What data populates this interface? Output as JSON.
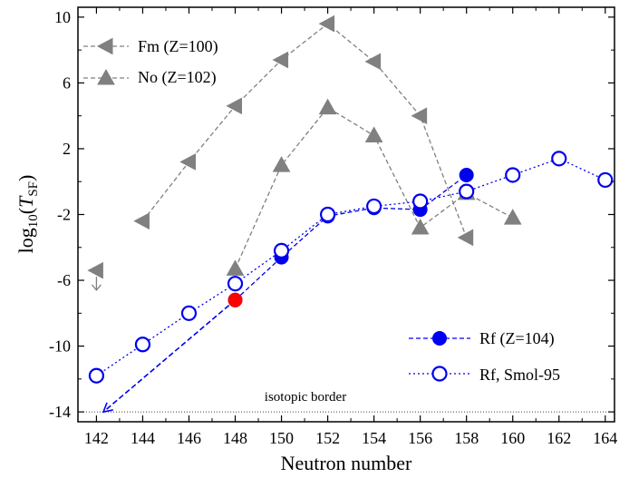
{
  "chart_data": {
    "type": "scatter",
    "xlabel": "Neutron number",
    "ylabel": {
      "base": "log",
      "sub1": "10",
      "open": "(",
      "italic": "T",
      "sub2": "SF",
      "close": ")"
    },
    "xlim": [
      141.2,
      164.4
    ],
    "ylim": [
      -14.6,
      10.6
    ],
    "xticks": [
      142,
      144,
      146,
      148,
      150,
      152,
      154,
      156,
      158,
      160,
      162,
      164
    ],
    "yticks": [
      10,
      6,
      2,
      -2,
      -6,
      -10,
      -14
    ],
    "ytick_labels": [
      "10",
      "6",
      "2",
      "-2",
      "-6",
      "-10",
      "-14"
    ],
    "grid": false,
    "legend_placement": [
      "top-left",
      "bottom-right"
    ],
    "series": [
      {
        "name": "Fm (Z=100)",
        "marker": "triangle-left",
        "color": "#808080",
        "filled": true,
        "line": "dashed",
        "x": [
          144,
          146,
          148,
          150,
          152,
          154,
          156,
          158
        ],
        "y": [
          -2.4,
          1.2,
          4.6,
          7.4,
          9.6,
          7.3,
          4.0,
          -3.4
        ]
      },
      {
        "name": "No (Z=102)",
        "marker": "triangle-up",
        "color": "#808080",
        "filled": true,
        "line": "dashed",
        "x": [
          148,
          150,
          152,
          154,
          156,
          158,
          160
        ],
        "y": [
          -5.3,
          1.0,
          4.5,
          2.8,
          -2.8,
          -0.7,
          -2.2
        ]
      },
      {
        "name": "Rf (Z=104)",
        "marker": "circle",
        "color": "#0000ee",
        "filled": true,
        "line": "dashed",
        "x": [
          148,
          150,
          152,
          154,
          156,
          158
        ],
        "y": [
          -7.2,
          -4.6,
          -2.1,
          -1.6,
          -1.7,
          0.4
        ]
      },
      {
        "name": "Rf, Smol-95",
        "marker": "circle",
        "color": "#0000ee",
        "filled": false,
        "line": "dotted",
        "x": [
          142,
          144,
          146,
          148,
          150,
          152,
          154,
          156,
          158,
          160,
          162,
          164
        ],
        "y": [
          -11.8,
          -9.9,
          -8.0,
          -6.2,
          -4.2,
          -2.0,
          -1.5,
          -1.2,
          -0.6,
          0.4,
          1.4,
          0.1
        ]
      }
    ],
    "extra_points": [
      {
        "description": "red",
        "x": 148,
        "y": -7.2,
        "color": "#ff0000"
      },
      {
        "description": "grey triangle with upper-limit arrow",
        "x": 142,
        "y": -5.4,
        "arrow_to": -6.6,
        "color": "#808080"
      }
    ],
    "extrapolation": {
      "color": "#0000ee",
      "from": [
        148,
        -7.2
      ],
      "to": [
        142.3,
        -14.0
      ]
    },
    "isotopic_border": {
      "label": "isotopic border",
      "y": -14
    }
  }
}
